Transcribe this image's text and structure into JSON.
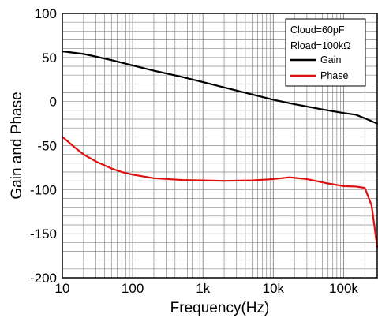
{
  "chart_data": {
    "type": "line",
    "xlabel": "Frequency(Hz)",
    "ylabel": "Gain and Phase",
    "x_scale": "log",
    "xlim": [
      10,
      300000
    ],
    "ylim": [
      -200,
      100
    ],
    "x_ticks": [
      {
        "value": 10,
        "label": "10"
      },
      {
        "value": 100,
        "label": "100"
      },
      {
        "value": 1000,
        "label": "1k"
      },
      {
        "value": 10000,
        "label": "10k"
      },
      {
        "value": 100000,
        "label": "100k"
      }
    ],
    "y_ticks": [
      {
        "value": 100,
        "label": "100"
      },
      {
        "value": 50,
        "label": "50"
      },
      {
        "value": 0,
        "label": "0"
      },
      {
        "value": -50,
        "label": "-50"
      },
      {
        "value": -100,
        "label": "-100"
      },
      {
        "value": -150,
        "label": "-150"
      },
      {
        "value": -200,
        "label": "-200"
      }
    ],
    "grid": true,
    "legend_position": "top-right",
    "legend_notes": [
      "Cloud=60pF",
      "Rload=100kΩ"
    ],
    "series": [
      {
        "name": "Gain",
        "color": "#000000",
        "points": [
          [
            10,
            57
          ],
          [
            20,
            54
          ],
          [
            30,
            51
          ],
          [
            50,
            47
          ],
          [
            100,
            41
          ],
          [
            200,
            35
          ],
          [
            500,
            28
          ],
          [
            1000,
            22
          ],
          [
            2000,
            16
          ],
          [
            5000,
            8
          ],
          [
            10000,
            2
          ],
          [
            20000,
            -3
          ],
          [
            50000,
            -9
          ],
          [
            100000,
            -13
          ],
          [
            150000,
            -15
          ],
          [
            200000,
            -19
          ],
          [
            300000,
            -25
          ]
        ]
      },
      {
        "name": "Phase",
        "color": "#e01010",
        "points": [
          [
            10,
            -40
          ],
          [
            15,
            -52
          ],
          [
            20,
            -60
          ],
          [
            30,
            -68
          ],
          [
            50,
            -76
          ],
          [
            70,
            -80
          ],
          [
            100,
            -83
          ],
          [
            200,
            -87
          ],
          [
            500,
            -89
          ],
          [
            1000,
            -89.5
          ],
          [
            2000,
            -90
          ],
          [
            5000,
            -89.5
          ],
          [
            10000,
            -88
          ],
          [
            17000,
            -86
          ],
          [
            30000,
            -88
          ],
          [
            60000,
            -93
          ],
          [
            100000,
            -96
          ],
          [
            150000,
            -96.5
          ],
          [
            200000,
            -98
          ],
          [
            250000,
            -118
          ],
          [
            300000,
            -165
          ]
        ]
      }
    ]
  }
}
